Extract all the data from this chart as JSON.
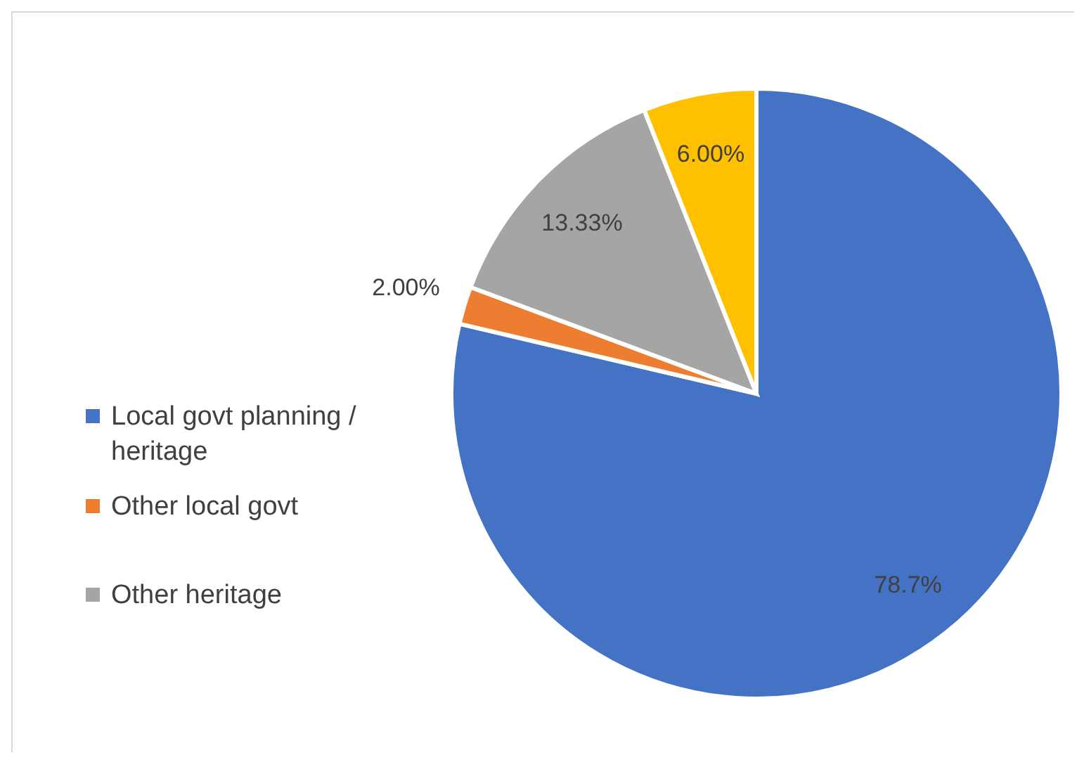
{
  "chart_data": {
    "type": "pie",
    "categories": [
      "Local govt planning / heritage",
      "Other local govt",
      "Other heritage",
      null
    ],
    "values": [
      78.7,
      2.0,
      13.33,
      6.0
    ],
    "colors": [
      "#4472c4",
      "#ed7d31",
      "#a5a5a5",
      "#ffc000"
    ],
    "data_labels": true,
    "value_labels": [
      "78.7%",
      "2.00%",
      "13.33%",
      "6.00%"
    ],
    "legend": "left"
  }
}
